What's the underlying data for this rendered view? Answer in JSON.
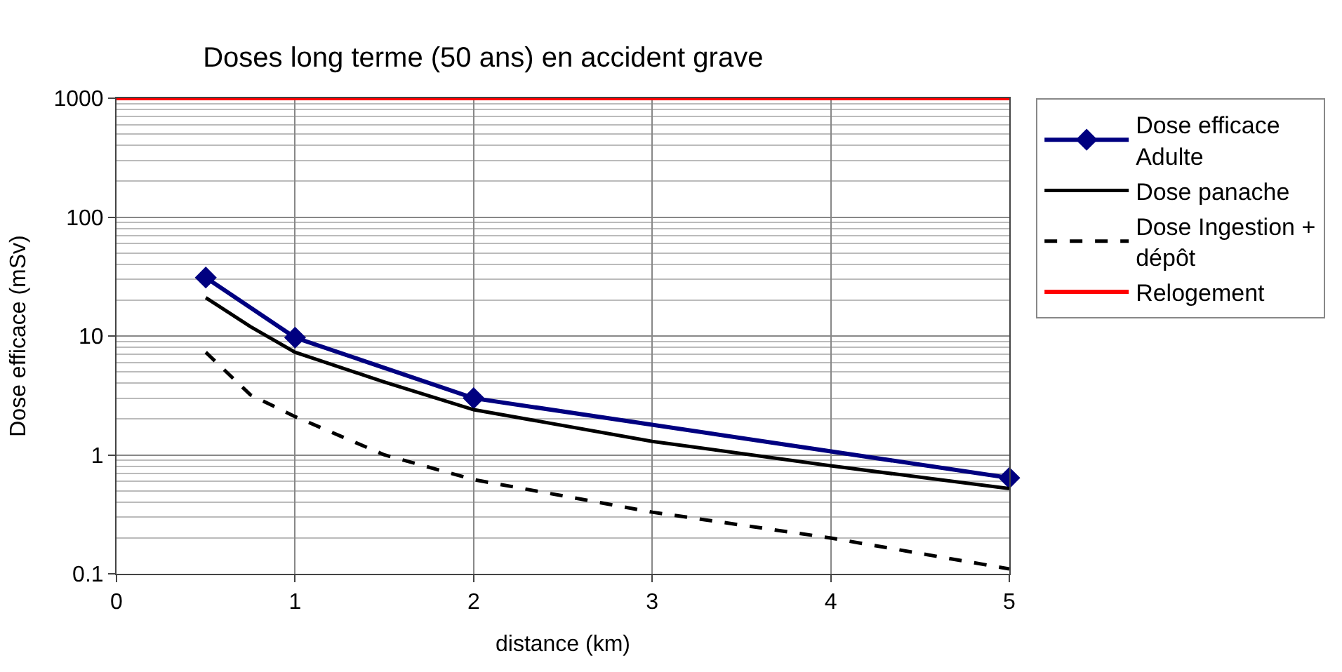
{
  "chart_data": {
    "type": "line",
    "title": "Doses long terme (50 ans) en accident grave",
    "xlabel": "distance (km)",
    "ylabel": "Dose efficace (mSv)",
    "log": "y",
    "xlim": [
      0,
      5
    ],
    "xticks": [
      0,
      1,
      2,
      3,
      4,
      5
    ],
    "ylim": [
      0.1,
      1000
    ],
    "yticks": [
      0.1,
      1,
      10,
      100,
      1000
    ],
    "grid": true,
    "legend": "right",
    "series": [
      {
        "name": "Dose efficace Adulte",
        "color": "#000080",
        "marker": "diamond",
        "line_style": "solid",
        "x": [
          0.5,
          1,
          2,
          5
        ],
        "values": [
          31,
          9.7,
          3.0,
          0.64
        ]
      },
      {
        "name": "Dose panache",
        "color": "#000000",
        "marker": "none",
        "line_style": "solid",
        "x": [
          0.5,
          0.75,
          1,
          1.5,
          2,
          3,
          4,
          5
        ],
        "values": [
          21,
          12,
          7.3,
          4.1,
          2.4,
          1.3,
          0.81,
          0.52
        ]
      },
      {
        "name": "Dose Ingestion + dépôt",
        "color": "#000000",
        "marker": "none",
        "line_style": "dashed",
        "x": [
          0.5,
          0.75,
          1,
          1.5,
          2,
          3,
          4,
          5
        ],
        "values": [
          7.3,
          3.2,
          2.1,
          1.0,
          0.62,
          0.33,
          0.2,
          0.11
        ]
      },
      {
        "name": "Relogement",
        "color": "#ff0000",
        "marker": "none",
        "line_style": "solid",
        "x": [
          0,
          5
        ],
        "values": [
          1000,
          1000
        ]
      }
    ]
  }
}
